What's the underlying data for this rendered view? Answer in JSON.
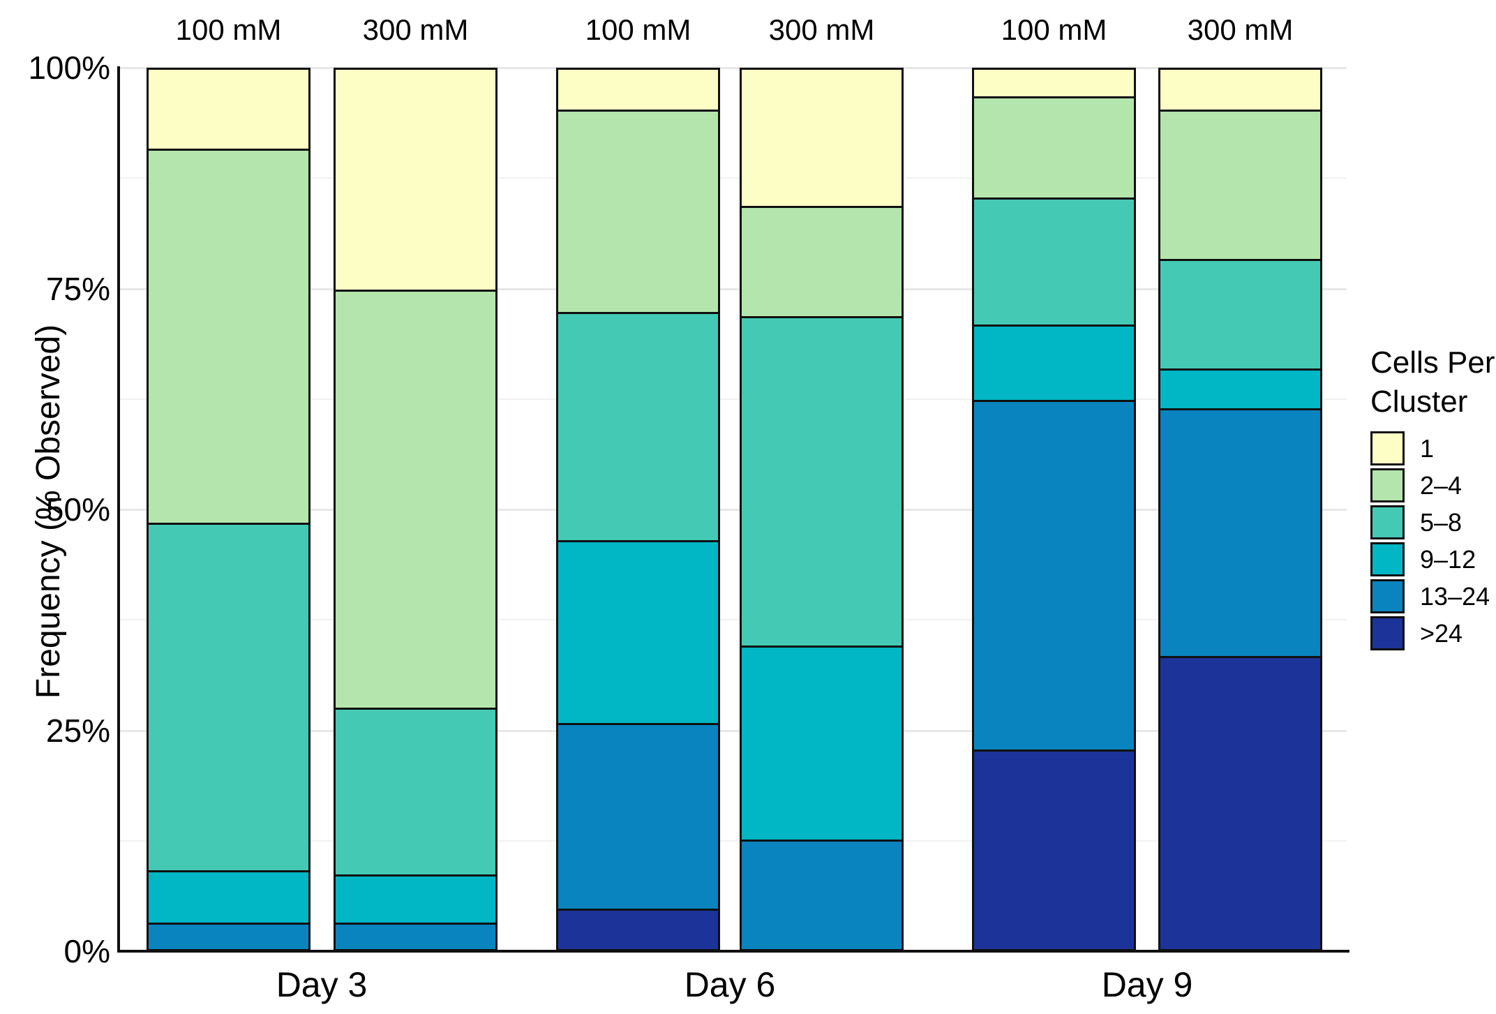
{
  "axes": {
    "y_label": "Frequency (% Observed)",
    "y_ticks": [
      {
        "label": "0%",
        "value": 0
      },
      {
        "label": "25%",
        "value": 25
      },
      {
        "label": "50%",
        "value": 50
      },
      {
        "label": "75%",
        "value": 75
      },
      {
        "label": "100%",
        "value": 100
      }
    ],
    "x_group_labels": [
      "Day 3",
      "Day 6",
      "Day 9"
    ],
    "bar_column_labels": [
      "100 mM",
      "300 mM",
      "100 mM",
      "300 mM",
      "100 mM",
      "300 mM"
    ]
  },
  "legend": {
    "title_lines": [
      "Cells Per",
      "Cluster"
    ],
    "entries": [
      {
        "label": "1",
        "color": "#FDFDC6"
      },
      {
        "label": "2–4",
        "color": "#B4E5AC"
      },
      {
        "label": "5–8",
        "color": "#44CAB4"
      },
      {
        "label": "9–12",
        "color": "#01B6C5"
      },
      {
        "label": "13–24",
        "color": "#0A84BE"
      },
      {
        "label": ">24",
        "color": "#1C3399"
      }
    ]
  },
  "chart_data": {
    "type": "bar",
    "stacked": true,
    "orientation": "vertical",
    "unit": "percent",
    "title": "",
    "xlabel": "",
    "ylabel": "Frequency (% Observed)",
    "ylim": [
      0,
      100
    ],
    "grid": "horizontal, major every 25%, faint minor every 12.5%",
    "legend_title": "Cells Per Cluster",
    "legend_position": "right",
    "categories": [
      "1",
      "2–4",
      "5–8",
      "9–12",
      "13–24",
      ">24"
    ],
    "category_colors": [
      "#FDFDC6",
      "#B4E5AC",
      "#44CAB4",
      "#01B6C5",
      "#0A84BE",
      "#1C3399"
    ],
    "stack_order_bottom_to_top": [
      ">24",
      "13–24",
      "9–12",
      "5–8",
      "2–4",
      "1"
    ],
    "groups": [
      "Day 3",
      "Day 6",
      "Day 9"
    ],
    "conditions": [
      "100 mM",
      "300 mM"
    ],
    "bars": [
      {
        "group": "Day 3",
        "condition": "100 mM",
        "values": {
          "1": 9.0,
          "2–4": 42.5,
          "5–8": 39.5,
          "9–12": 6.0,
          "13–24": 3.0,
          ">24": 0.0
        }
      },
      {
        "group": "Day 3",
        "condition": "300 mM",
        "values": {
          "1": 25.0,
          "2–4": 47.5,
          "5–8": 19.0,
          "9–12": 5.5,
          "13–24": 3.0,
          ">24": 0.0
        }
      },
      {
        "group": "Day 6",
        "condition": "100 mM",
        "values": {
          "1": 4.5,
          "2–4": 23.0,
          "5–8": 26.0,
          "9–12": 20.8,
          "13–24": 21.1,
          ">24": 4.6
        }
      },
      {
        "group": "Day 6",
        "condition": "300 mM",
        "values": {
          "1": 15.5,
          "2–4": 12.5,
          "5–8": 37.5,
          "9–12": 22.0,
          "13–24": 12.5,
          ">24": 0.0
        }
      },
      {
        "group": "Day 9",
        "condition": "100 mM",
        "values": {
          "1": 3.0,
          "2–4": 11.5,
          "5–8": 14.5,
          "9–12": 8.5,
          "13–24": 39.8,
          ">24": 22.7
        }
      },
      {
        "group": "Day 9",
        "condition": "300 mM",
        "values": {
          "1": 4.5,
          "2–4": 17.0,
          "5–8": 12.5,
          "9–12": 4.5,
          "13–24": 28.2,
          ">24": 33.3
        }
      }
    ]
  }
}
